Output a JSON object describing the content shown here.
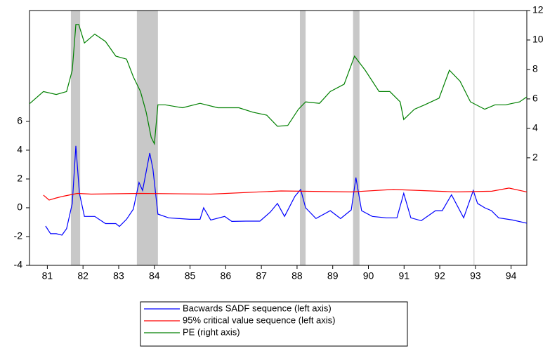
{
  "chart_data": {
    "type": "line",
    "xlim": [
      81,
      94.94
    ],
    "xticks": [
      {
        "value": 81.5,
        "label": "81"
      },
      {
        "value": 82.5,
        "label": "82"
      },
      {
        "value": 83.5,
        "label": "83"
      },
      {
        "value": 84.5,
        "label": "84"
      },
      {
        "value": 85.5,
        "label": "85"
      },
      {
        "value": 86.5,
        "label": "86"
      },
      {
        "value": 87.5,
        "label": "87"
      },
      {
        "value": 88.5,
        "label": "88"
      },
      {
        "value": 89.5,
        "label": "89"
      },
      {
        "value": 90.5,
        "label": "90"
      },
      {
        "value": 91.5,
        "label": "91"
      },
      {
        "value": 92.5,
        "label": "92"
      },
      {
        "value": 93.5,
        "label": "93"
      },
      {
        "value": 94.5,
        "label": "94"
      }
    ],
    "ylim": [
      -4,
      13.7
    ],
    "yticks": [
      -4,
      -2,
      0,
      2,
      4,
      6
    ],
    "y2lim": [
      -5.3,
      12
    ],
    "y2ticks": [
      2,
      4,
      6,
      8,
      10,
      12
    ],
    "shaded_periods": [
      [
        82.16,
        82.42
      ],
      [
        84.01,
        84.6
      ],
      [
        88.58,
        88.74
      ],
      [
        90.07,
        90.25
      ],
      [
        93.45,
        93.47
      ]
    ],
    "legend": "bottom",
    "series": [
      {
        "name": "Bacwards SADF sequence (left axis)",
        "color": "#0000ff",
        "x": [
          81.45,
          81.59,
          81.75,
          81.91,
          82.04,
          82.2,
          82.3,
          82.4,
          82.54,
          82.83,
          83.13,
          83.42,
          83.52,
          83.72,
          83.91,
          84.07,
          84.17,
          84.37,
          84.46,
          84.6,
          84.9,
          85.49,
          85.78,
          85.88,
          86.08,
          86.47,
          86.67,
          87.06,
          87.46,
          87.75,
          87.95,
          88.15,
          88.44,
          88.6,
          88.74,
          89.03,
          89.43,
          89.72,
          90.02,
          90.15,
          90.31,
          90.61,
          91.0,
          91.3,
          91.49,
          91.69,
          91.98,
          92.38,
          92.57,
          92.83,
          93.17,
          93.44,
          93.56,
          93.76,
          93.95,
          94.15,
          94.54,
          94.94
        ],
        "values": [
          -1.27,
          -1.8,
          -1.8,
          -1.9,
          -1.45,
          0.3,
          4.3,
          1.0,
          -0.6,
          -0.6,
          -1.1,
          -1.1,
          -1.3,
          -0.8,
          -0.1,
          1.76,
          1.2,
          3.8,
          2.7,
          -0.44,
          -0.7,
          -0.8,
          -0.8,
          0,
          -0.85,
          -0.6,
          -0.95,
          -0.93,
          -0.93,
          -0.3,
          0.3,
          -0.6,
          0.8,
          1.27,
          0,
          -0.75,
          -0.2,
          -0.75,
          -0.15,
          2.1,
          -0.2,
          -0.6,
          -0.7,
          -0.7,
          1.0,
          -0.7,
          -0.9,
          -0.2,
          -0.2,
          0.9,
          -0.7,
          1.2,
          0.3,
          0,
          -0.2,
          -0.7,
          -0.85,
          -1.07
        ]
      },
      {
        "name": "95% critical value sequence (left axis)",
        "color": "#ff0000",
        "x": [
          81.39,
          81.55,
          81.75,
          81.94,
          82.34,
          82.73,
          84.11,
          86.08,
          88.05,
          90.02,
          91.2,
          92.97,
          93.96,
          94.44,
          94.94
        ],
        "values": [
          0.88,
          0.54,
          0.68,
          0.8,
          1.0,
          0.95,
          1.0,
          0.95,
          1.17,
          1.1,
          1.27,
          1.1,
          1.15,
          1.37,
          1.1
        ]
      },
      {
        "name": "PE (right axis)",
        "color": "#008000",
        "axis": "y2",
        "x": [
          81,
          81.39,
          81.75,
          82.04,
          82.2,
          82.3,
          82.38,
          82.54,
          82.83,
          83.13,
          83.42,
          83.72,
          83.91,
          84.11,
          84.27,
          84.41,
          84.5,
          84.6,
          84.8,
          85.29,
          85.78,
          86.28,
          86.87,
          87.26,
          87.65,
          87.95,
          88.24,
          88.54,
          88.74,
          89.13,
          89.43,
          89.82,
          90.11,
          90.41,
          90.8,
          91.1,
          91.39,
          91.49,
          91.79,
          92.08,
          92.48,
          92.77,
          93.07,
          93.36,
          93.76,
          94.05,
          94.35,
          94.74,
          94.94
        ],
        "values": [
          5.67,
          6.5,
          6.3,
          6.5,
          7.95,
          11.05,
          11.05,
          9.8,
          10.4,
          9.9,
          8.9,
          8.7,
          7.5,
          6.5,
          5.1,
          3.4,
          2.95,
          5.6,
          5.6,
          5.4,
          5.7,
          5.4,
          5.4,
          5.1,
          4.9,
          4.14,
          4.2,
          5.3,
          5.8,
          5.7,
          6.5,
          7.0,
          8.9,
          7.95,
          6.5,
          6.5,
          5.8,
          4.6,
          5.3,
          5.6,
          6.05,
          7.95,
          7.2,
          5.8,
          5.3,
          5.6,
          5.6,
          5.8,
          6.14
        ]
      }
    ]
  }
}
